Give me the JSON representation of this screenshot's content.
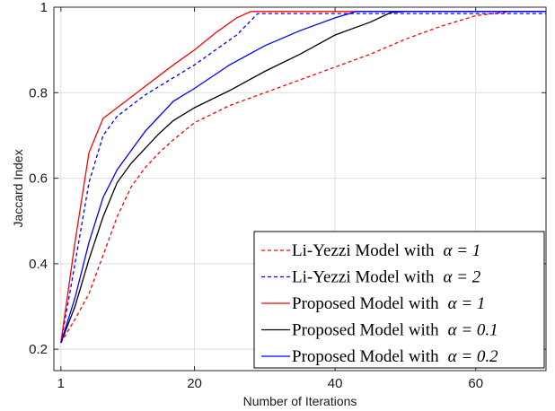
{
  "chart_data": {
    "type": "line",
    "title": "",
    "xlabel": "Number of Iterations",
    "ylabel": "Jaccard Index",
    "xlim": [
      0,
      70
    ],
    "ylim": [
      0.15,
      1.0
    ],
    "xticks": [
      1,
      20,
      40,
      60
    ],
    "xtick_labels": [
      "1",
      "20",
      "40",
      "60"
    ],
    "yticks": [
      0.2,
      0.4,
      0.6,
      0.8,
      1.0
    ],
    "ytick_labels": [
      "0.2",
      "0.4",
      "0.6",
      "0.8",
      "1"
    ],
    "grid": true,
    "legend_position": "bottom-right",
    "series": [
      {
        "name": "Li-Yezzi Model with",
        "alpha_label": "α = 1",
        "color": "#ff0000",
        "dash": "dashed",
        "x": [
          1,
          3,
          5,
          7,
          9,
          11,
          13,
          15,
          17,
          20,
          25,
          30,
          35,
          40,
          45,
          50,
          55,
          60,
          65,
          70
        ],
        "y": [
          0.215,
          0.27,
          0.33,
          0.42,
          0.51,
          0.58,
          0.625,
          0.66,
          0.69,
          0.73,
          0.77,
          0.8,
          0.83,
          0.86,
          0.89,
          0.925,
          0.955,
          0.98,
          0.99,
          0.99
        ]
      },
      {
        "name": "Li-Yezzi Model with",
        "alpha_label": "α = 2",
        "color": "#0000ff",
        "dash": "dashed",
        "x": [
          1,
          3,
          5,
          7,
          9,
          11,
          13,
          15,
          17,
          20,
          23,
          26,
          29,
          35,
          40,
          50,
          60,
          70
        ],
        "y": [
          0.215,
          0.4,
          0.59,
          0.7,
          0.745,
          0.77,
          0.795,
          0.815,
          0.835,
          0.865,
          0.9,
          0.935,
          0.985,
          0.985,
          0.985,
          0.985,
          0.985,
          0.985
        ]
      },
      {
        "name": "Proposed Model with",
        "alpha_label": "α = 1",
        "color": "#ff0000",
        "dash": "solid",
        "x": [
          1,
          3,
          5,
          7,
          9,
          11,
          13,
          15,
          17,
          20,
          23,
          26,
          28,
          35,
          40,
          50,
          60,
          70
        ],
        "y": [
          0.215,
          0.45,
          0.66,
          0.74,
          0.765,
          0.79,
          0.815,
          0.84,
          0.865,
          0.9,
          0.94,
          0.975,
          0.99,
          0.99,
          0.99,
          0.99,
          0.99,
          0.99
        ]
      },
      {
        "name": "Proposed Model with",
        "alpha_label": "α = 0.1",
        "color": "#000000",
        "dash": "solid",
        "x": [
          1,
          3,
          5,
          7,
          9,
          11,
          13,
          15,
          17,
          20,
          25,
          30,
          35,
          40,
          45,
          48,
          50,
          60,
          70
        ],
        "y": [
          0.215,
          0.3,
          0.41,
          0.51,
          0.59,
          0.635,
          0.67,
          0.705,
          0.735,
          0.765,
          0.805,
          0.85,
          0.89,
          0.935,
          0.965,
          0.988,
          0.99,
          0.99,
          0.99
        ]
      },
      {
        "name": "Proposed Model with",
        "alpha_label": "α = 0.2",
        "color": "#0000ff",
        "dash": "solid",
        "x": [
          1,
          3,
          5,
          7,
          9,
          11,
          13,
          15,
          17,
          20,
          25,
          30,
          35,
          40,
          43,
          50,
          60,
          70
        ],
        "y": [
          0.215,
          0.32,
          0.45,
          0.555,
          0.62,
          0.665,
          0.71,
          0.745,
          0.78,
          0.81,
          0.865,
          0.91,
          0.945,
          0.975,
          0.99,
          0.99,
          0.99,
          0.99
        ]
      }
    ]
  }
}
